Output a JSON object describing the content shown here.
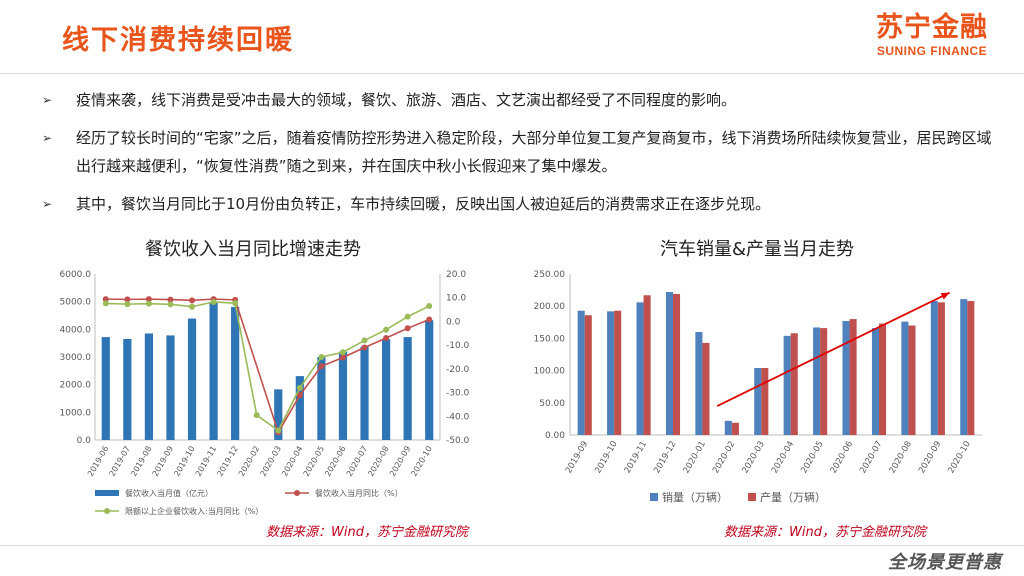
{
  "header": {
    "title": "线下消费持续回暖",
    "logo_cn": "苏宁金融",
    "logo_en": "SUNING FINANCE"
  },
  "bullets": [
    {
      "mark": "➢",
      "text": "疫情来袭，线下消费是受冲击最大的领域，餐饮、旅游、酒店、文艺演出都经受了不同程度的影响。"
    },
    {
      "mark": "➢",
      "text": "经历了较长时间的“宅家”之后，随着疫情防控形势进入稳定阶段，大部分单位复工复产复商复市，线下消费场所陆续恢复营业，居民跨区域出行越来越便利，“恢复性消费”随之到来，并在国庆中秋小长假迎来了集中爆发。"
    },
    {
      "mark": "➢",
      "text": "其中，餐饮当月同比于10月份由负转正，车市持续回暖，反映出国人被迫延后的消费需求正在逐步兑现。"
    }
  ],
  "chart_data": [
    {
      "type": "bar",
      "title": "餐饮收入当月同比增速走势",
      "categories": [
        "2019-06",
        "2019-07",
        "2019-08",
        "2019-09",
        "2019-10",
        "2019-11",
        "2019-12",
        "2020-02",
        "2020-03",
        "2020-04",
        "2020-05",
        "2020-06",
        "2020-07",
        "2020-08",
        "2020-09",
        "2020-10"
      ],
      "ylim_left": [
        0,
        6000
      ],
      "yticks_left": [
        "0.0",
        "1000.0",
        "2000.0",
        "3000.0",
        "4000.0",
        "5000.0",
        "6000.0"
      ],
      "ylim_right": [
        -50,
        20
      ],
      "yticks_right": [
        "-50.0",
        "-40.0",
        "-30.0",
        "-20.0",
        "-10.0",
        "0.0",
        "10.0",
        "20.0"
      ],
      "series": [
        {
          "name": "餐饮收入当月值（亿元）",
          "type": "bar",
          "axis": "left",
          "color": "#2e75b6",
          "values": [
            3720,
            3650,
            3850,
            3780,
            4390,
            4950,
            4810,
            null,
            1830,
            2310,
            3000,
            3190,
            3370,
            3640,
            3720,
            4330
          ]
        },
        {
          "name": "餐饮收入当月同比（%）",
          "type": "line",
          "axis": "right",
          "color": "#c0504d",
          "values": [
            9.4,
            9.3,
            9.4,
            9.2,
            8.9,
            9.4,
            9.1,
            null,
            -46.8,
            -31.1,
            -18.9,
            -15.2,
            -11.0,
            -7.0,
            -2.9,
            0.8
          ]
        },
        {
          "name": "限额以上企业餐饮收入:当月同比（%）",
          "type": "line",
          "axis": "right",
          "color": "#9bbb59",
          "values": [
            7.6,
            7.3,
            7.5,
            7.2,
            6.2,
            8.2,
            7.7,
            -39.5,
            -46.0,
            -28.0,
            -15.0,
            -13.0,
            -8.0,
            -3.5,
            2.0,
            6.5
          ]
        }
      ],
      "source": "数据来源：Wind，苏宁金融研究院"
    },
    {
      "type": "bar",
      "title": "汽车销量&产量当月走势",
      "categories": [
        "2019-09",
        "2019-10",
        "2019-11",
        "2019-12",
        "2020-01",
        "2020-02",
        "2020-03",
        "2020-04",
        "2020-05",
        "2020-06",
        "2020-07",
        "2020-08",
        "2020-09",
        "2020-10"
      ],
      "ylim": [
        0,
        250
      ],
      "yticks": [
        "0.00",
        "50.00",
        "100.00",
        "150.00",
        "200.00",
        "250.00"
      ],
      "series": [
        {
          "name": "销量（万辆）",
          "color": "#4f81bd",
          "values": [
            193,
            192,
            206,
            222,
            160,
            22,
            104,
            154,
            167,
            177,
            166,
            176,
            208,
            211
          ]
        },
        {
          "name": "产量（万辆）",
          "color": "#c0504d",
          "values": [
            186,
            193,
            217,
            219,
            143,
            19,
            104,
            158,
            166,
            180,
            173,
            170,
            206,
            208
          ]
        }
      ],
      "trend_arrow_color": "#e00000",
      "source": "数据来源：Wind，苏宁金融研究院"
    }
  ],
  "footer": {
    "watermark": "全场景更普惠"
  }
}
